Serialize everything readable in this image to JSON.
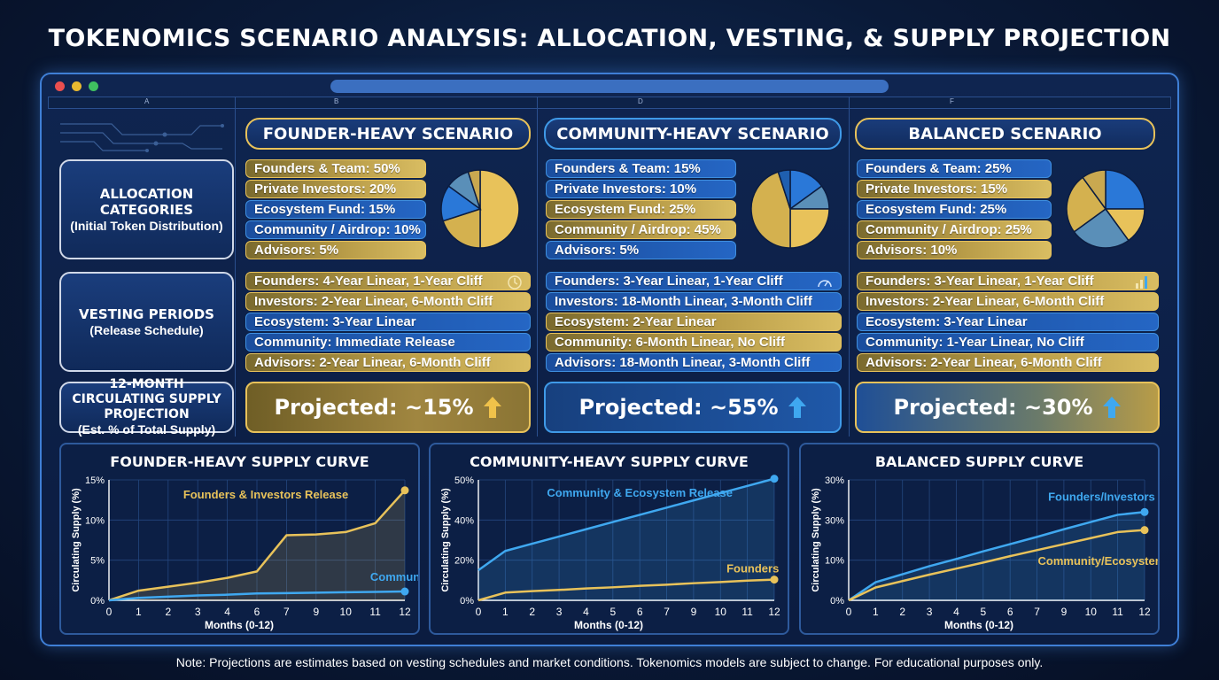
{
  "title": "TOKENOMICS SCENARIO ANALYSIS: ALLOCATION, VESTING, & SUPPLY PROJECTION",
  "columns": [
    "A",
    "B",
    "D",
    "F"
  ],
  "row_labels": {
    "allocation": {
      "main": "ALLOCATION CATEGORIES",
      "sub": "(Initial Token Distribution)"
    },
    "vesting": {
      "main": "VESTING PERIODS",
      "sub": "(Release Schedule)"
    },
    "projection": {
      "main": "12-MONTH CIRCULATING SUPPLY PROJECTION",
      "sub": "(Est. % of Total Supply)"
    }
  },
  "colors": {
    "gold": "#e8c25a",
    "blue": "#3fa8f0",
    "accent": "#3f7fd6"
  },
  "scenarios": [
    {
      "name": "FOUNDER-HEAVY SCENARIO",
      "allocations": [
        {
          "label": "Founders & Team: 50%",
          "value": 50,
          "color": "gold"
        },
        {
          "label": "Private Investors: 20%",
          "value": 20,
          "color": "gold"
        },
        {
          "label": "Ecosystem Fund: 15%",
          "value": 15,
          "color": "blue"
        },
        {
          "label": "Community / Airdrop: 10%",
          "value": 10,
          "color": "blue"
        },
        {
          "label": "Advisors: 5%",
          "value": 5,
          "color": "gold"
        }
      ],
      "vesting": [
        {
          "label": "Founders: 4-Year Linear, 1-Year Cliff",
          "color": "gold"
        },
        {
          "label": "Investors: 2-Year Linear, 6-Month Cliff",
          "color": "gold"
        },
        {
          "label": "Ecosystem: 3-Year Linear",
          "color": "blue"
        },
        {
          "label": "Community: Immediate Release",
          "color": "blue"
        },
        {
          "label": "Advisors: 2-Year Linear, 6-Month Cliff",
          "color": "gold"
        }
      ],
      "vesting_icon": "clock-icon",
      "projection": "Projected: ~15%"
    },
    {
      "name": "COMMUNITY-HEAVY SCENARIO",
      "allocations": [
        {
          "label": "Founders & Team: 15%",
          "value": 15,
          "color": "blue"
        },
        {
          "label": "Private Investors: 10%",
          "value": 10,
          "color": "blue"
        },
        {
          "label": "Ecosystem Fund: 25%",
          "value": 25,
          "color": "gold"
        },
        {
          "label": "Community / Airdrop: 45%",
          "value": 45,
          "color": "gold"
        },
        {
          "label": "Advisors: 5%",
          "value": 5,
          "color": "blue"
        }
      ],
      "vesting": [
        {
          "label": "Founders: 3-Year Linear, 1-Year Cliff",
          "color": "blue"
        },
        {
          "label": "Investors: 18-Month Linear, 3-Month Cliff",
          "color": "blue"
        },
        {
          "label": "Ecosystem: 2-Year Linear",
          "color": "gold"
        },
        {
          "label": "Community: 6-Month Linear, No Cliff",
          "color": "gold"
        },
        {
          "label": "Advisors: 18-Month Linear, 3-Month Cliff",
          "color": "blue"
        }
      ],
      "vesting_icon": "gauge-icon",
      "projection": "Projected: ~55%"
    },
    {
      "name": "BALANCED SCENARIO",
      "allocations": [
        {
          "label": "Founders & Team: 25%",
          "value": 25,
          "color": "blue"
        },
        {
          "label": "Private Investors: 15%",
          "value": 15,
          "color": "gold"
        },
        {
          "label": "Ecosystem Fund: 25%",
          "value": 25,
          "color": "blue"
        },
        {
          "label": "Community / Airdrop: 25%",
          "value": 25,
          "color": "gold"
        },
        {
          "label": "Advisors: 10%",
          "value": 10,
          "color": "gold"
        }
      ],
      "vesting": [
        {
          "label": "Founders: 3-Year Linear, 1-Year Cliff",
          "color": "gold"
        },
        {
          "label": "Investors: 2-Year Linear, 6-Month Cliff",
          "color": "gold"
        },
        {
          "label": "Ecosystem: 3-Year Linear",
          "color": "blue"
        },
        {
          "label": "Community: 1-Year Linear, No Cliff",
          "color": "blue"
        },
        {
          "label": "Advisors: 2-Year Linear, 6-Month Cliff",
          "color": "gold"
        }
      ],
      "vesting_icon": "bar-chart-icon",
      "projection": "Projected: ~30%"
    }
  ],
  "chart_data": [
    {
      "type": "line",
      "title": "FOUNDER-HEAVY SUPPLY CURVE",
      "xlabel": "Months (0-12)",
      "ylabel": "Circulating Supply (%)",
      "x": [
        0,
        1,
        2,
        3,
        4,
        6,
        7,
        9,
        10,
        11,
        12
      ],
      "xticks": [
        0,
        1,
        2,
        3,
        4,
        6,
        7,
        9,
        10,
        11,
        12
      ],
      "yticks": [
        "0%",
        "5%",
        "10%",
        "15%"
      ],
      "ylim": [
        0,
        15
      ],
      "grid": true,
      "series": [
        {
          "name": "Founders & Investors Release",
          "color": "gold",
          "fill": true,
          "values": [
            0,
            1.2,
            1.7,
            2.2,
            2.8,
            3.6,
            8.1,
            8.2,
            8.5,
            9.6,
            13.7
          ]
        },
        {
          "name": "Community",
          "color": "blue",
          "fill": false,
          "values": [
            0,
            0.3,
            0.45,
            0.6,
            0.7,
            0.85,
            0.9,
            0.95,
            1.0,
            1.05,
            1.1
          ]
        }
      ],
      "annotations": [
        {
          "text": "Founders & Investors Release",
          "color": "gold",
          "at_x": 5.3,
          "at_y": 12.7
        },
        {
          "text": "Community",
          "color": "blue",
          "at_x": 9.9,
          "at_y": 2.4
        }
      ]
    },
    {
      "type": "line",
      "title": "COMMUNITY-HEAVY SUPPLY CURVE",
      "xlabel": "Months (0-12)",
      "ylabel": "Circulating Supply (%)",
      "x": [
        0,
        1,
        2,
        3,
        4,
        5,
        6,
        7,
        9,
        10,
        11,
        12
      ],
      "xticks": [
        0,
        1,
        2,
        3,
        4,
        5,
        6,
        7,
        9,
        10,
        11,
        12
      ],
      "yticks": [
        "0%",
        "20%",
        "40%",
        "50%"
      ],
      "ylim": [
        0,
        50
      ],
      "grid": true,
      "series": [
        {
          "name": "Community & Ecosystem Release",
          "color": "blue",
          "fill": true,
          "values": [
            12.5,
            20.5,
            23.5,
            26.5,
            29.5,
            32.5,
            35.5,
            38.5,
            41.5,
            44.5,
            47.5,
            50.5
          ]
        },
        {
          "name": "Founders",
          "color": "gold",
          "fill": false,
          "values": [
            0,
            3.2,
            3.8,
            4.3,
            4.9,
            5.4,
            6.0,
            6.5,
            7.1,
            7.6,
            8.2,
            8.6
          ]
        }
      ],
      "annotations": [
        {
          "text": "Community & Ecosystem Release",
          "color": "blue",
          "at_x": 6.0,
          "at_y": 43
        },
        {
          "text": "Founders",
          "color": "gold",
          "at_x": 10.2,
          "at_y": 11.5
        }
      ]
    },
    {
      "type": "line",
      "title": "BALANCED SUPPLY CURVE",
      "xlabel": "Months (0-12)",
      "ylabel": "Circulating Supply (%)",
      "x": [
        0,
        1,
        2,
        3,
        4,
        5,
        6,
        7,
        9,
        10,
        11,
        12
      ],
      "xticks": [
        0,
        1,
        2,
        3,
        4,
        5,
        6,
        7,
        9,
        10,
        11,
        12
      ],
      "yticks": [
        "0%",
        "10%",
        "30%",
        "30%"
      ],
      "ylim": [
        0,
        30
      ],
      "grid": true,
      "series": [
        {
          "name": "Founders/Investors",
          "color": "blue",
          "fill": true,
          "values": [
            0,
            4.5,
            6.5,
            8.5,
            10.3,
            12.2,
            14.0,
            15.8,
            17.7,
            19.5,
            21.3,
            22.0
          ]
        },
        {
          "name": "Community/Ecosystem",
          "color": "gold",
          "fill": false,
          "values": [
            0,
            3.2,
            4.8,
            6.4,
            7.9,
            9.4,
            11.0,
            12.5,
            14.0,
            15.5,
            17.0,
            17.5
          ]
        }
      ],
      "annotations": [
        {
          "text": "Founders/Investors",
          "color": "blue",
          "at_x": 9.4,
          "at_y": 24.8
        },
        {
          "text": "Community/Ecosystem",
          "color": "gold",
          "at_x": 9.4,
          "at_y": 8.8
        }
      ]
    }
  ],
  "footer": "Note: Projections are estimates based on vesting schedules and market conditions. Tokenomics models are subject to change. For educational purposes only."
}
